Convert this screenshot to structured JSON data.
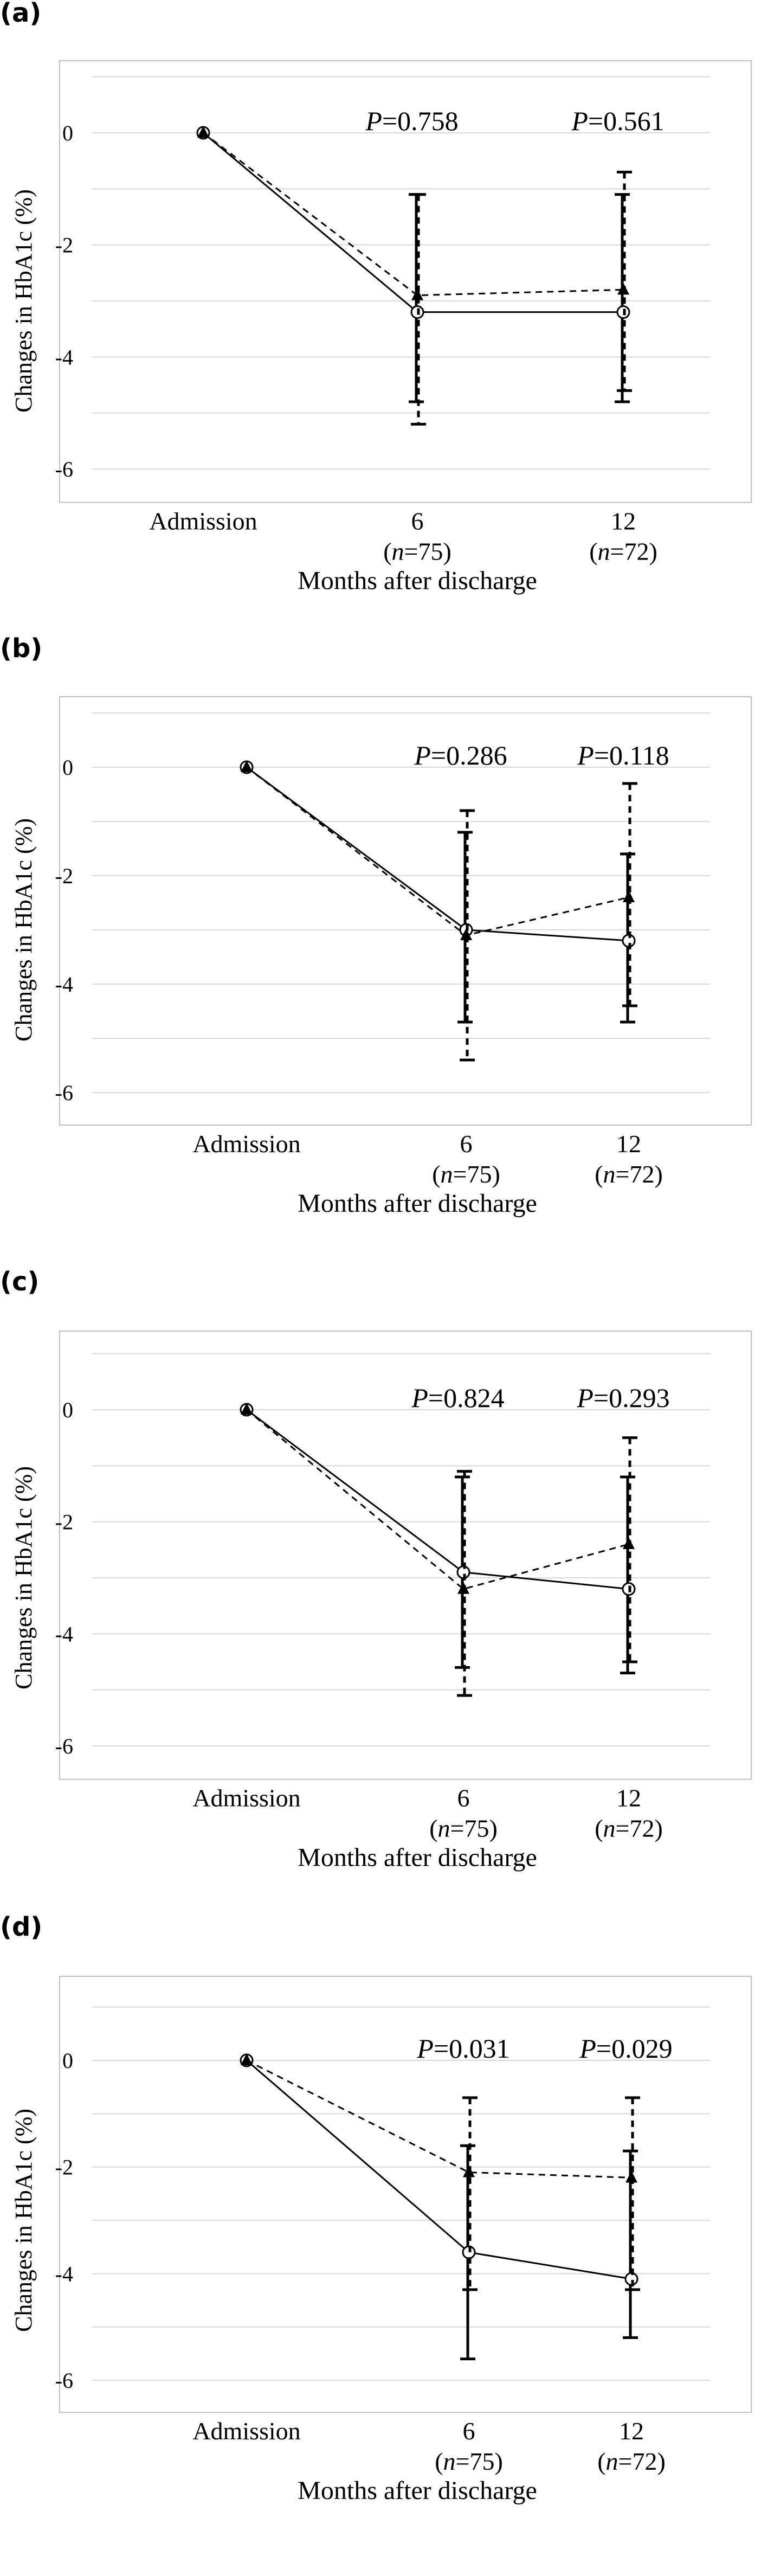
{
  "colors": {
    "line": "#000000",
    "grid": "#d9d9d9",
    "frame": "#bfbfbf",
    "background": "#ffffff"
  },
  "chart_data": [
    {
      "panel": "(a)",
      "type": "line",
      "ylabel": "Changes in HbA1c (%)",
      "xlabel": "Months after discharge",
      "categories": [
        "Admission",
        "6",
        "12"
      ],
      "category_sublabels": [
        "",
        "(n=75)",
        "(n=72)"
      ],
      "y_ticks": [
        0,
        -2,
        -4,
        -6
      ],
      "ylim": [
        -6.5,
        1.3
      ],
      "grid": true,
      "p_values": [
        "P=0.758",
        "P=0.561"
      ],
      "series": [
        {
          "name": "solid, open circles",
          "style": "solid",
          "marker": "circle",
          "values": [
            0,
            -3.2,
            -3.2
          ],
          "error_low": [
            0,
            -4.8,
            -4.8
          ],
          "error_high": [
            0,
            -1.1,
            -1.1
          ]
        },
        {
          "name": "dashed, filled triangles",
          "style": "dashed",
          "marker": "triangle",
          "values": [
            0,
            -2.9,
            -2.8
          ],
          "error_low": [
            0,
            -5.2,
            -4.6
          ],
          "error_high": [
            0,
            -1.1,
            -0.7
          ]
        }
      ]
    },
    {
      "panel": "(b)",
      "type": "line",
      "ylabel": "Changes in HbA1c (%)",
      "xlabel": "Months after discharge",
      "categories": [
        "Admission",
        "6",
        "12"
      ],
      "category_sublabels": [
        "",
        "(n=75)",
        "(n=72)"
      ],
      "y_ticks": [
        0,
        -2,
        -4,
        -6
      ],
      "ylim": [
        -6.5,
        1.3
      ],
      "grid": true,
      "p_values": [
        "P=0.286",
        "P=0.118"
      ],
      "series": [
        {
          "name": "solid, open circles",
          "style": "solid",
          "marker": "circle",
          "values": [
            0,
            -3.0,
            -3.2
          ],
          "error_low": [
            0,
            -4.7,
            -4.7
          ],
          "error_high": [
            0,
            -1.2,
            -1.6
          ]
        },
        {
          "name": "dashed, filled triangles",
          "style": "dashed",
          "marker": "triangle",
          "values": [
            0,
            -3.1,
            -2.4
          ],
          "error_low": [
            0,
            -5.4,
            -4.4
          ],
          "error_high": [
            0,
            -0.8,
            -0.3
          ]
        }
      ]
    },
    {
      "panel": "(c)",
      "type": "line",
      "ylabel": "Changes in HbA1c (%)",
      "xlabel": "Months after discharge",
      "categories": [
        "Admission",
        "6",
        "12"
      ],
      "category_sublabels": [
        "",
        "(n=75)",
        "(n=72)"
      ],
      "y_ticks": [
        0,
        -2,
        -4,
        -6
      ],
      "ylim": [
        -6.5,
        1.3
      ],
      "grid": true,
      "p_values": [
        "P=0.824",
        "P=0.293"
      ],
      "series": [
        {
          "name": "solid, open circles",
          "style": "solid",
          "marker": "circle",
          "values": [
            0,
            -2.9,
            -3.2
          ],
          "error_low": [
            0,
            -4.6,
            -4.7
          ],
          "error_high": [
            0,
            -1.2,
            -1.2
          ]
        },
        {
          "name": "dashed, filled triangles",
          "style": "dashed",
          "marker": "triangle",
          "values": [
            0,
            -3.2,
            -2.4
          ],
          "error_low": [
            0,
            -5.1,
            -4.5
          ],
          "error_high": [
            0,
            -1.1,
            -0.5
          ]
        }
      ]
    },
    {
      "panel": "(d)",
      "type": "line",
      "ylabel": "Changes in HbA1c (%)",
      "xlabel": "Months after discharge",
      "categories": [
        "Admission",
        "6",
        "12"
      ],
      "category_sublabels": [
        "",
        "(n=75)",
        "(n=72)"
      ],
      "y_ticks": [
        0,
        -2,
        -4,
        -6
      ],
      "ylim": [
        -6.5,
        1.3
      ],
      "grid": true,
      "p_values": [
        "P=0.031",
        "P=0.029"
      ],
      "series": [
        {
          "name": "solid, open circles",
          "style": "solid",
          "marker": "circle",
          "values": [
            0,
            -3.6,
            -4.1
          ],
          "error_low": [
            0,
            -5.6,
            -5.2
          ],
          "error_high": [
            0,
            -1.6,
            -1.7
          ]
        },
        {
          "name": "dashed, filled triangles",
          "style": "dashed",
          "marker": "triangle",
          "values": [
            0,
            -2.1,
            -2.2
          ],
          "error_low": [
            0,
            -4.3,
            -4.3
          ],
          "error_high": [
            0,
            -0.7,
            -0.7
          ]
        }
      ]
    }
  ]
}
